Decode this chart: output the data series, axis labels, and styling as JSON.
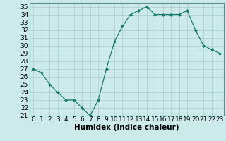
{
  "x": [
    0,
    1,
    2,
    3,
    4,
    5,
    6,
    7,
    8,
    9,
    10,
    11,
    12,
    13,
    14,
    15,
    16,
    17,
    18,
    19,
    20,
    21,
    22,
    23
  ],
  "y": [
    27,
    26.5,
    25,
    24,
    23,
    23,
    22,
    21,
    23,
    27,
    30.5,
    32.5,
    34,
    34.5,
    35,
    34,
    34,
    34,
    34,
    34.5,
    32,
    30,
    29.5,
    29
  ],
  "line_color": "#1a7a6e",
  "marker_color": "#1a7a6e",
  "bg_color": "#cceaea",
  "grid_color": "#aacccc",
  "xlabel": "Humidex (Indice chaleur)",
  "ylim": [
    21,
    35.5
  ],
  "xlim": [
    -0.5,
    23.5
  ],
  "yticks": [
    21,
    22,
    23,
    24,
    25,
    26,
    27,
    28,
    29,
    30,
    31,
    32,
    33,
    34,
    35
  ],
  "xticks": [
    0,
    1,
    2,
    3,
    4,
    5,
    6,
    7,
    8,
    9,
    10,
    11,
    12,
    13,
    14,
    15,
    16,
    17,
    18,
    19,
    20,
    21,
    22,
    23
  ],
  "font_size": 6.5,
  "xlabel_font_size": 7.5
}
